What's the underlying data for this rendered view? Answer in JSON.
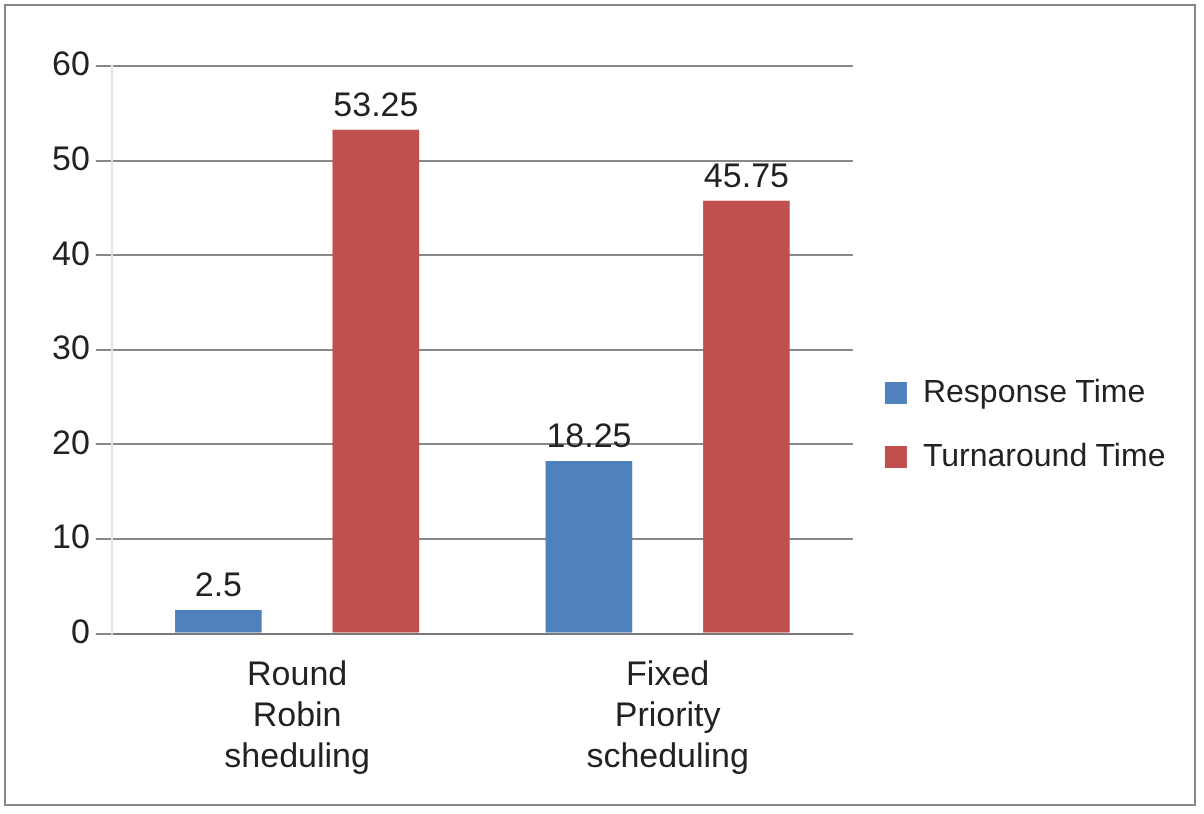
{
  "chart_data": {
    "type": "bar",
    "categories": [
      "Round Robin sheduling",
      "Fixed Priority scheduling"
    ],
    "series": [
      {
        "name": "Response Time",
        "color": "#4f81bd",
        "values": [
          2.5,
          18.25
        ]
      },
      {
        "name": "Turnaround Time",
        "color": "#c0504d",
        "values": [
          53.25,
          45.75
        ]
      }
    ],
    "ylim": [
      0,
      60
    ],
    "yticks": [
      0,
      10,
      20,
      30,
      40,
      50,
      60
    ],
    "grid": "y",
    "legend": "right",
    "data_labels": true
  }
}
